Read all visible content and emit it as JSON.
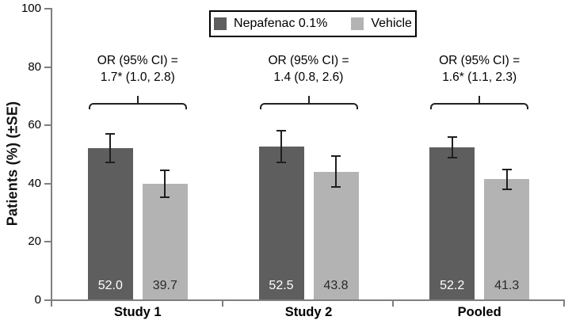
{
  "figure": {
    "accent_colors": {
      "dark_bar": "#5e5e5e",
      "light_bar": "#b3b3b3",
      "axis": "#7f7f7f",
      "error_bar": "#1f1f1f",
      "text": "#000000"
    }
  },
  "chart_data": {
    "type": "bar",
    "title": "",
    "xlabel": "",
    "ylabel": "Patients (%) (±SE)",
    "ylim": [
      0,
      100
    ],
    "yticks": [
      0,
      20,
      40,
      60,
      80,
      100
    ],
    "grid": false,
    "legend_position": "top-center",
    "categories": [
      "Study 1",
      "Study 2",
      "Pooled"
    ],
    "series": [
      {
        "name": "Nepafenac 0.1%",
        "color": "#5e5e5e",
        "values": [
          52.0,
          52.5,
          52.2
        ],
        "se": [
          4.9,
          5.5,
          3.5
        ],
        "value_labels": [
          "52.0",
          "52.5",
          "52.2"
        ],
        "value_label_color": "#ffffff"
      },
      {
        "name": "Vehicle",
        "color": "#b3b3b3",
        "values": [
          39.7,
          43.8,
          41.3
        ],
        "se": [
          4.6,
          5.3,
          3.4
        ],
        "value_labels": [
          "39.7",
          "43.8",
          "41.3"
        ],
        "value_label_color": "#2a2a2a"
      }
    ],
    "annotations": [
      {
        "line1": "OR (95% CI) =",
        "line2": "1.7* (1.0, 2.8)"
      },
      {
        "line1": "OR (95% CI) =",
        "line2": "1.4 (0.8, 2.6)"
      },
      {
        "line1": "OR (95% CI) =",
        "line2": "1.6* (1.1, 2.3)"
      }
    ]
  }
}
